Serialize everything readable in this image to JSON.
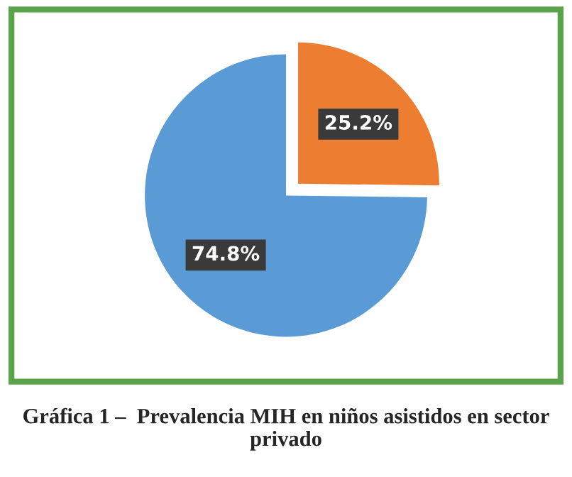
{
  "chart_data": {
    "type": "pie",
    "title": "Gráfica 1 –  Prevalencia MIH en niños asistidos en sector privado",
    "categories": [
      null,
      null
    ],
    "values": [
      25.2,
      74.8
    ],
    "colors": [
      "#ed7d31",
      "#5b9bd5"
    ],
    "value_labels": [
      "25.2%",
      "74.8%"
    ],
    "legend": false
  }
}
